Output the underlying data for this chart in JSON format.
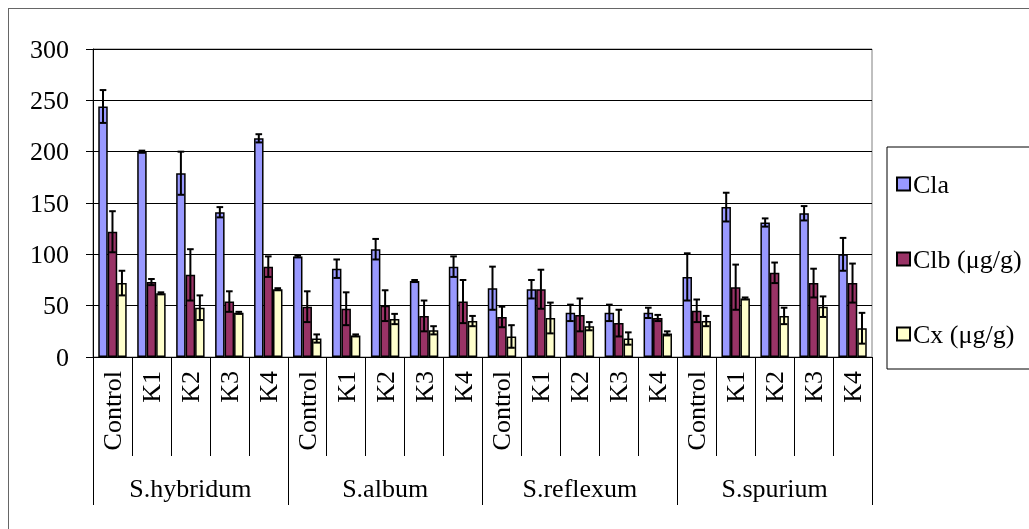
{
  "chart_data": {
    "type": "bar",
    "categories": [
      "Control",
      "K1",
      "K2",
      "K3",
      "K4",
      "Control",
      "K1",
      "K2",
      "K3",
      "K4",
      "Control",
      "K1",
      "K2",
      "K3",
      "K4",
      "Control",
      "K1",
      "K2",
      "K3",
      "K4"
    ],
    "annotations": [
      "S.hybridum",
      "S.album",
      "S.reflexum",
      "S.spurium"
    ],
    "series": [
      {
        "name": "Cla",
        "color": "#9999ff",
        "values": [
          244,
          200,
          179,
          141,
          213,
          98,
          86,
          105,
          74,
          88,
          67,
          66,
          43,
          43,
          43,
          78,
          146,
          131,
          140,
          100
        ],
        "errors": [
          16,
          1,
          21,
          5,
          4,
          1,
          9,
          10,
          1,
          10,
          21,
          9,
          8,
          8,
          5,
          23,
          14,
          4,
          7,
          16
        ]
      },
      {
        "name": "Clb (μg/g)",
        "color": "#993366",
        "values": [
          122,
          73,
          80,
          54,
          88,
          49,
          47,
          50,
          40,
          54,
          39,
          66,
          41,
          33,
          38,
          45,
          68,
          82,
          72,
          72
        ],
        "errors": [
          20,
          3,
          25,
          10,
          10,
          15,
          16,
          15,
          15,
          21,
          10,
          19,
          16,
          13,
          3,
          11,
          22,
          10,
          14,
          19
        ]
      },
      {
        "name": "Cx (μg/g)",
        "color": "#ffffcc",
        "values": [
          72,
          62,
          48,
          43,
          66,
          18,
          21,
          37,
          26,
          35,
          20,
          38,
          30,
          18,
          23,
          35,
          57,
          40,
          49,
          28
        ],
        "errors": [
          12,
          1,
          12,
          1,
          1,
          4,
          1,
          5,
          4,
          5,
          11,
          15,
          4,
          6,
          2,
          5,
          1,
          8,
          10,
          15
        ]
      }
    ],
    "ylim": [
      0,
      300
    ],
    "yticks": [
      0,
      50,
      100,
      150,
      200,
      250,
      300
    ],
    "grid": "y",
    "legend": "right"
  }
}
